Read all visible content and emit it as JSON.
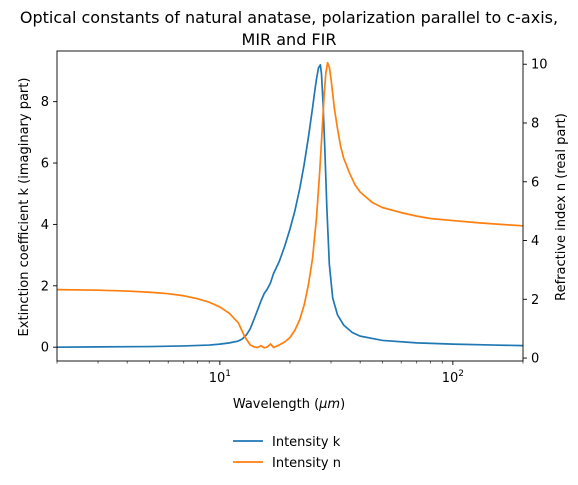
{
  "chart_data": {
    "type": "line",
    "title_line1": "Optical constants of natural anatase, polarization parallel to c-axis,",
    "title_line2": "MIR and FIR",
    "xlabel": "Wavelength ($\\mu m$)",
    "xlabel_prefix": "Wavelength (",
    "xlabel_mu": "μ",
    "xlabel_unit": "m",
    "xlabel_suffix": ")",
    "ylabel_left": "Extinction coefficient k (imaginary part)",
    "ylabel_right": "Refractive index n (real part)",
    "x_scale": "log",
    "xlim": [
      2,
      200
    ],
    "ylim_left": [
      -0.45,
      9.65
    ],
    "ylim_right": [
      -0.1,
      10.45
    ],
    "x_ticks": [
      {
        "value": 10,
        "base": "10",
        "exp": "1"
      },
      {
        "value": 100,
        "base": "10",
        "exp": "2"
      }
    ],
    "y_ticks_left": [
      "0",
      "2",
      "4",
      "6",
      "8"
    ],
    "y_ticks_right": [
      "0",
      "2",
      "4",
      "6",
      "8",
      "10"
    ],
    "grid": false,
    "legend_position": "below",
    "series": [
      {
        "name": "Intensity k",
        "axis": "left",
        "color": "#1f77b4",
        "x": [
          2,
          3,
          5,
          7,
          9,
          10,
          11,
          12,
          12.5,
          13,
          13.5,
          14,
          14.5,
          15,
          15.5,
          16,
          16.5,
          17,
          17.5,
          18,
          19,
          20,
          21,
          22,
          23,
          24,
          25,
          25.5,
          26,
          26.5,
          27,
          27.3,
          27.7,
          28.2,
          28.8,
          29.5,
          30.5,
          32,
          34,
          37,
          40,
          50,
          70,
          100,
          150,
          200
        ],
        "values": [
          0.0,
          0.01,
          0.02,
          0.04,
          0.07,
          0.1,
          0.14,
          0.2,
          0.27,
          0.4,
          0.6,
          0.9,
          1.2,
          1.5,
          1.75,
          1.9,
          2.1,
          2.4,
          2.6,
          2.8,
          3.3,
          3.85,
          4.45,
          5.15,
          5.95,
          6.85,
          7.8,
          8.3,
          8.75,
          9.1,
          9.2,
          8.9,
          8.0,
          6.5,
          4.5,
          2.7,
          1.6,
          1.05,
          0.72,
          0.48,
          0.36,
          0.22,
          0.14,
          0.1,
          0.07,
          0.05
        ]
      },
      {
        "name": "Intensity n",
        "axis": "right",
        "color": "#ff7f0e",
        "x": [
          2,
          3,
          4,
          5,
          6,
          7,
          8,
          9,
          10,
          11,
          12,
          12.8,
          13.5,
          14,
          14.5,
          15,
          15.5,
          16,
          16.5,
          17,
          17.5,
          18,
          19,
          20,
          21,
          22,
          23,
          24,
          25,
          26,
          26.8,
          27.5,
          28,
          28.5,
          29,
          29.5,
          30,
          30.5,
          31,
          32,
          33,
          34,
          36,
          38,
          40,
          45,
          50,
          60,
          70,
          80,
          100,
          130,
          160,
          200
        ],
        "values": [
          2.33,
          2.31,
          2.28,
          2.24,
          2.19,
          2.12,
          2.02,
          1.9,
          1.74,
          1.52,
          1.2,
          0.72,
          0.45,
          0.38,
          0.36,
          0.42,
          0.35,
          0.38,
          0.48,
          0.36,
          0.4,
          0.45,
          0.55,
          0.7,
          0.95,
          1.3,
          1.8,
          2.5,
          3.4,
          4.8,
          6.3,
          7.8,
          8.9,
          9.7,
          10.05,
          9.9,
          9.5,
          9.0,
          8.5,
          7.8,
          7.2,
          6.8,
          6.3,
          5.9,
          5.65,
          5.3,
          5.12,
          4.95,
          4.83,
          4.75,
          4.68,
          4.6,
          4.55,
          4.5
        ]
      }
    ]
  },
  "legend": {
    "k_label": "Intensity k",
    "n_label": "Intensity n"
  },
  "colors": {
    "k": "#1f77b4",
    "n": "#ff7f0e"
  }
}
